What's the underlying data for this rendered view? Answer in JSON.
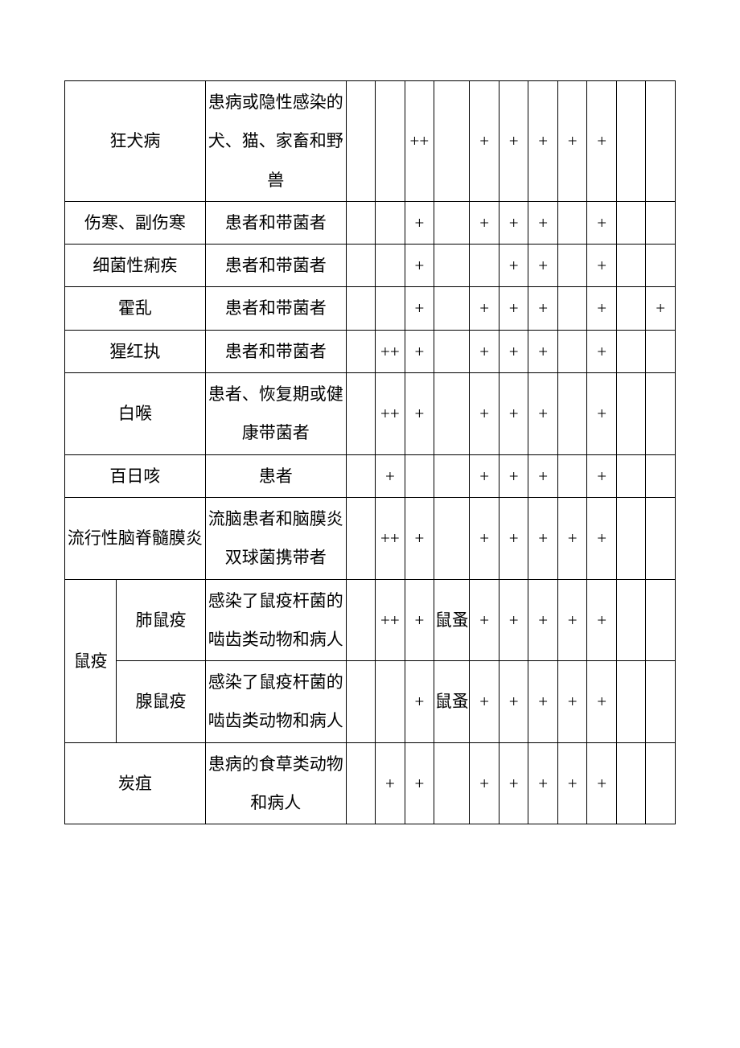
{
  "table": {
    "rows": [
      {
        "name_colspan": 2,
        "name": "狂犬病",
        "source": "患病或隐性感染的犬、猫、家畜和野兽",
        "cells": [
          "",
          "",
          "++",
          "",
          "+",
          "+",
          "+",
          "+",
          "+",
          "",
          ""
        ]
      },
      {
        "name_colspan": 2,
        "name": "伤寒、副伤寒",
        "source": "患者和带菌者",
        "cells": [
          "",
          "",
          "+",
          "",
          "+",
          "+",
          "+",
          "",
          "+",
          "",
          ""
        ]
      },
      {
        "name_colspan": 2,
        "name": "细菌性痢疾",
        "source": "患者和带菌者",
        "cells": [
          "",
          "",
          "+",
          "",
          "",
          "+",
          "+",
          "",
          "+",
          "",
          ""
        ]
      },
      {
        "name_colspan": 2,
        "name": "霍乱",
        "source": "患者和带菌者",
        "cells": [
          "",
          "",
          "+",
          "",
          "+",
          "+",
          "+",
          "",
          "+",
          "",
          "+"
        ]
      },
      {
        "name_colspan": 2,
        "name": "猩红执",
        "source": "患者和带菌者",
        "cells": [
          "",
          "++",
          "+",
          "",
          "+",
          "+",
          "+",
          "",
          "+",
          "",
          ""
        ]
      },
      {
        "name_colspan": 2,
        "name": "白喉",
        "source": "患者、恢复期或健康带菌者",
        "cells": [
          "",
          "++",
          "+",
          "",
          "+",
          "+",
          "+",
          "",
          "+",
          "",
          ""
        ]
      },
      {
        "name_colspan": 2,
        "name": "百日咳",
        "source": "患者",
        "cells": [
          "",
          "+",
          "",
          "",
          "+",
          "+",
          "+",
          "",
          "+",
          "",
          ""
        ]
      },
      {
        "name_colspan": 2,
        "name": "流行性脑脊髓膜炎",
        "source": "流脑患者和脑膜炎双球菌携带者",
        "cells": [
          "",
          "++",
          "+",
          "",
          "+",
          "+",
          "+",
          "+",
          "+",
          "",
          ""
        ]
      },
      {
        "group": "鼠疫",
        "group_rowspan": 2,
        "sub": "肺鼠疫",
        "source": "感染了鼠疫杆菌的啮齿类动物和病人",
        "cells": [
          "",
          "++",
          "+",
          "鼠蚤",
          "+",
          "+",
          "+",
          "+",
          "+",
          "",
          ""
        ]
      },
      {
        "sub": "腺鼠疫",
        "source": "感染了鼠疫杆菌的啮齿类动物和病人",
        "cells": [
          "",
          "",
          "+",
          "鼠蚤",
          "+",
          "+",
          "+",
          "+",
          "+",
          "",
          ""
        ]
      },
      {
        "name_colspan": 2,
        "name": "炭疽",
        "source": "患病的食草类动物和病人",
        "cells": [
          "",
          "+",
          "+",
          "",
          "+",
          "+",
          "+",
          "+",
          "+",
          "",
          ""
        ]
      }
    ]
  }
}
